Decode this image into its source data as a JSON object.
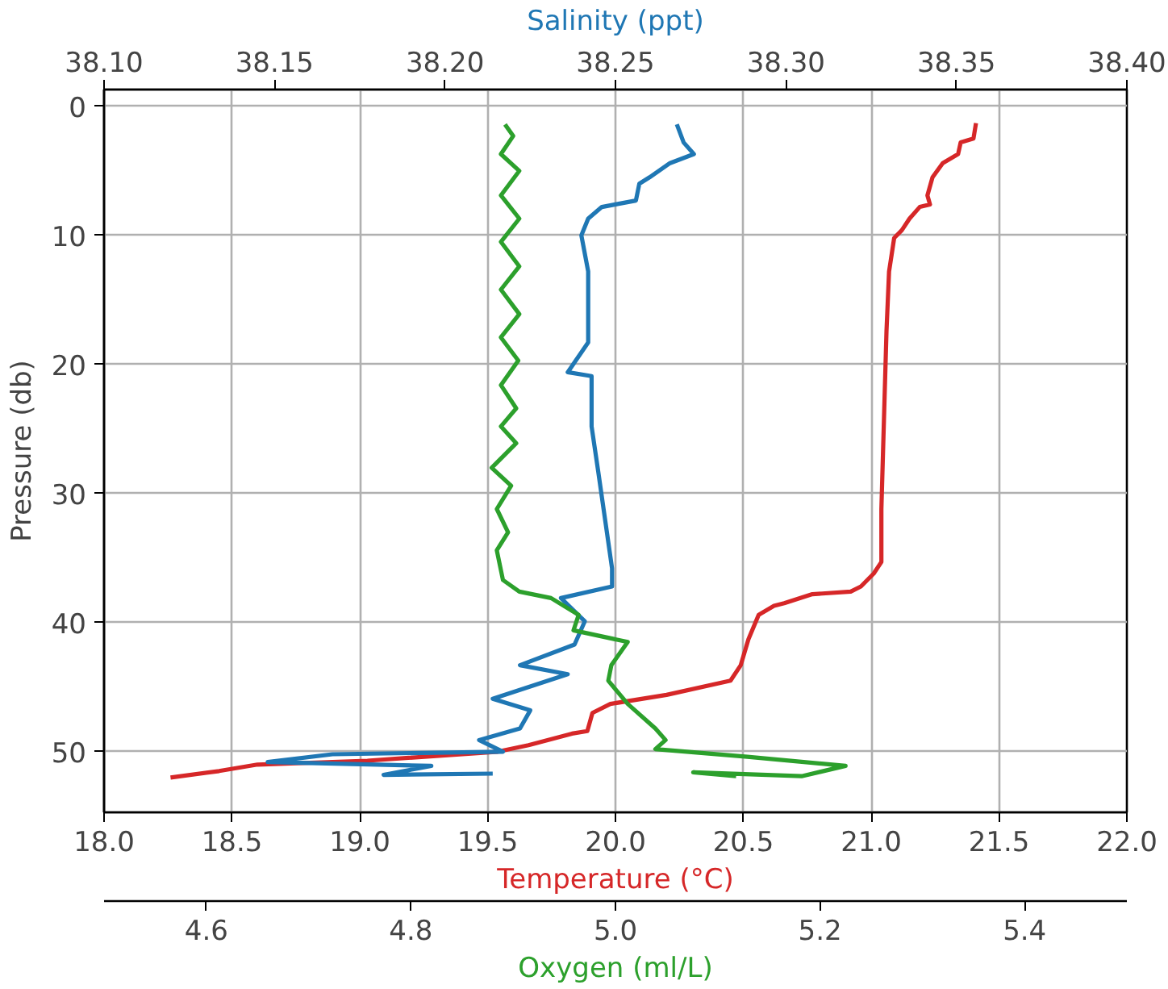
{
  "chart_data": [
    {
      "type": "line",
      "ylabel": "Pressure (db)",
      "xlabel": "Temperature (°C)",
      "x2label": "Salinity (ppt)",
      "ylim": [
        54.7,
        -1.3
      ],
      "yticks": [
        0,
        10,
        20,
        30,
        40,
        50
      ],
      "xlim": [
        18.0,
        22.0
      ],
      "xticks": [
        {
          "value": 18.0,
          "label": "18.0"
        },
        18.5,
        {
          "value": 19.0,
          "label": "19.0"
        },
        19.5,
        {
          "value": 20.0,
          "label": "20.0"
        },
        20.5,
        {
          "value": 21.0,
          "label": "21.0"
        },
        21.5,
        {
          "value": 22.0,
          "label": "22.0"
        }
      ],
      "x2lim": [
        38.1,
        38.4
      ],
      "x2ticks": [
        {
          "value": 38.1,
          "label": "38.10"
        },
        38.15,
        {
          "value": 38.2,
          "label": "38.20"
        },
        38.25,
        {
          "value": 38.3,
          "label": "38.30"
        },
        38.35,
        {
          "value": 38.4,
          "label": "38.40"
        }
      ],
      "grid": true,
      "marker": "none",
      "line_style": "solid",
      "series": [
        {
          "color": "#d62728",
          "x": [
            21.41,
            21.4,
            21.35,
            21.34,
            21.28,
            21.24,
            21.22,
            21.23,
            21.19,
            21.15,
            21.12,
            21.09,
            21.07,
            21.06,
            21.05,
            21.04,
            21.04,
            21.01,
            20.96,
            20.92,
            20.77,
            20.66,
            20.62,
            20.56,
            20.52,
            20.49,
            20.45,
            20.2,
            19.98,
            19.91,
            19.89,
            19.83,
            19.66,
            19.54,
            19.03,
            18.6,
            18.45,
            18.26
          ],
          "values": [
            1.3,
            2.5,
            2.8,
            3.7,
            4.4,
            5.5,
            6.9,
            7.6,
            7.8,
            8.7,
            9.6,
            10.2,
            12.8,
            17.4,
            24.3,
            31.2,
            35.3,
            36.2,
            37.2,
            37.6,
            37.8,
            38.5,
            38.7,
            39.4,
            41.3,
            43.3,
            44.5,
            45.6,
            46.3,
            47.0,
            48.4,
            48.6,
            49.5,
            50.0,
            50.7,
            51.0,
            51.5,
            52.0
          ]
        },
        {
          "color": "#1f77b4",
          "axis": "x2",
          "x": [
            38.268,
            38.27,
            38.273,
            38.266,
            38.26,
            38.257,
            38.256,
            38.25,
            38.246,
            38.242,
            38.24,
            38.242,
            38.242,
            38.236,
            38.243,
            38.243,
            38.245,
            38.247,
            38.249,
            38.249,
            38.234,
            38.241,
            38.238,
            38.222,
            38.236,
            38.214,
            38.225,
            38.222,
            38.21,
            38.217,
            38.167,
            38.148,
            38.196,
            38.182,
            38.214
          ],
          "values": [
            1.4,
            2.8,
            3.7,
            4.4,
            5.5,
            6.0,
            7.3,
            7.6,
            7.8,
            8.7,
            10.0,
            12.8,
            18.3,
            20.6,
            20.9,
            24.8,
            28.4,
            32.1,
            35.8,
            37.2,
            38.1,
            39.9,
            41.7,
            43.3,
            44.0,
            45.9,
            46.8,
            48.2,
            49.1,
            50.0,
            50.2,
            50.8,
            51.1,
            51.8,
            51.7
          ]
        }
      ]
    },
    {
      "type": "line",
      "xlabel": "Oxygen (ml/L)",
      "xlim": [
        4.5,
        5.5
      ],
      "xticks": [
        4.6,
        4.8,
        {
          "value": 5.0,
          "label": "5.0"
        },
        5.2,
        5.4
      ],
      "ylim": [
        54.7,
        -1.3
      ],
      "tick_labels": "x",
      "marker": "none",
      "line_style": "solid",
      "series": [
        {
          "color": "#2ca02c",
          "x": [
            4.892,
            4.9,
            4.888,
            4.906,
            4.888,
            4.906,
            4.888,
            4.906,
            4.888,
            4.906,
            4.888,
            4.905,
            4.888,
            4.903,
            4.888,
            4.903,
            4.879,
            4.898,
            4.884,
            4.895,
            4.884,
            4.89,
            4.906,
            4.937,
            4.964,
            4.959,
            5.012,
            4.996,
            4.993,
            5.012,
            5.039,
            5.049,
            5.039,
            5.129,
            5.225,
            5.182,
            5.076,
            5.118
          ],
          "values": [
            1.4,
            2.3,
            3.7,
            5.0,
            6.9,
            8.7,
            10.5,
            12.4,
            14.2,
            16.1,
            17.9,
            19.7,
            21.6,
            23.4,
            24.8,
            26.1,
            28.0,
            29.4,
            31.2,
            33.0,
            34.4,
            36.7,
            37.6,
            38.1,
            39.4,
            40.6,
            41.5,
            43.3,
            44.5,
            46.3,
            48.2,
            49.1,
            49.8,
            50.4,
            51.1,
            51.9,
            51.6,
            51.9
          ]
        }
      ]
    }
  ]
}
